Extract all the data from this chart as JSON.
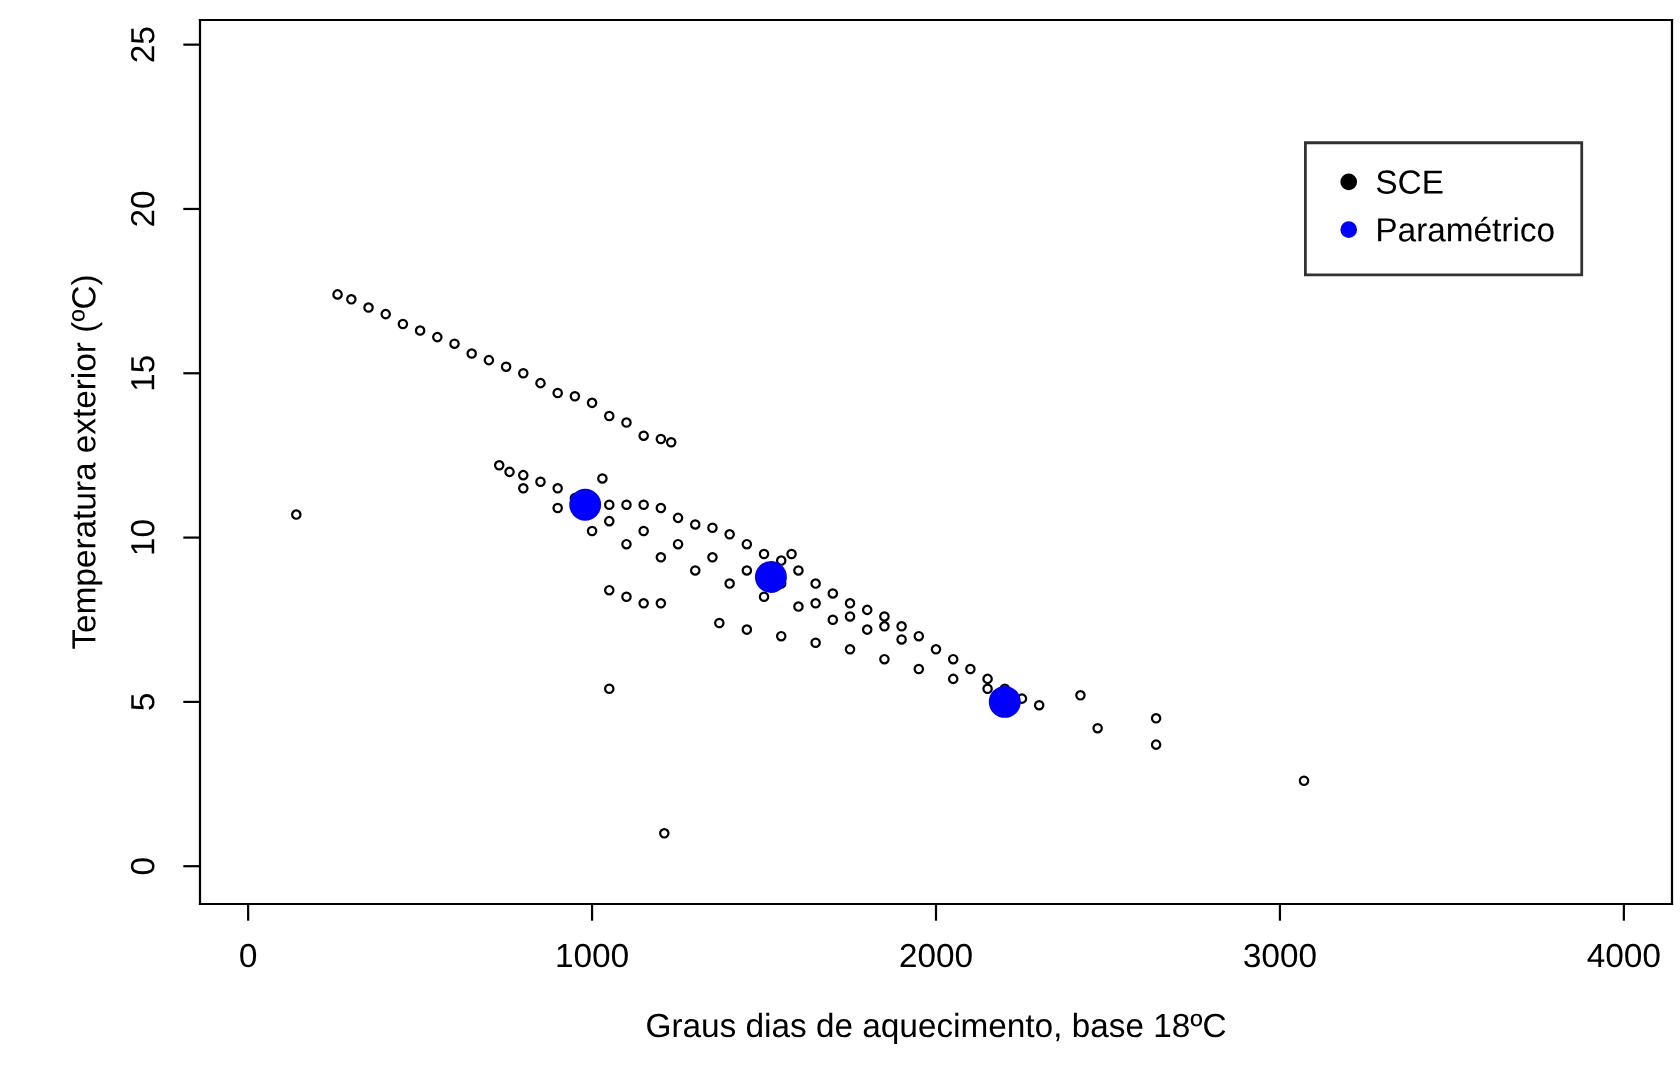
{
  "chart_data": {
    "type": "scatter",
    "xlabel": "Graus dias de aquecimento, base 18ºC",
    "ylabel": "Temperatura exterior (ºC)",
    "xlim": [
      -140,
      4140
    ],
    "ylim": [
      -1.15,
      25.75
    ],
    "xticks": [
      0,
      1000,
      2000,
      3000,
      4000
    ],
    "yticks": [
      0,
      5,
      10,
      15,
      20,
      25
    ],
    "grid": false,
    "legend": "top right",
    "marker": "circle",
    "series": [
      {
        "name": "SCE",
        "color": "#000000",
        "x": [
          260,
          300,
          350,
          400,
          450,
          500,
          550,
          600,
          650,
          700,
          750,
          800,
          850,
          900,
          950,
          1000,
          1050,
          1100,
          1150,
          1200,
          1230,
          730,
          760,
          800,
          850,
          900,
          950,
          1050,
          1100,
          1150,
          1200,
          1250,
          1300,
          1350,
          1400,
          1450,
          1500,
          1550,
          1600,
          1650,
          1700,
          1750,
          1800,
          1850,
          1900,
          1950,
          2000,
          2050,
          2100,
          2150,
          2200,
          2250,
          2300,
          800,
          900,
          1000,
          1100,
          1200,
          1300,
          1400,
          1500,
          1600,
          1700,
          1800,
          1900,
          1050,
          1150,
          1250,
          1350,
          1450,
          1550,
          1650,
          1750,
          1850,
          1050,
          1100,
          1150,
          1200,
          1370,
          1450,
          1550,
          1650,
          1750,
          1850,
          1950,
          2050,
          2150,
          140,
          1050,
          1210,
          1030,
          1580,
          2420,
          2470,
          2640,
          2640,
          3070
        ],
        "values": [
          17.4,
          17.25,
          17.0,
          16.8,
          16.5,
          16.3,
          16.1,
          15.9,
          15.6,
          15.4,
          15.2,
          15.0,
          14.7,
          14.4,
          14.3,
          14.1,
          13.7,
          13.5,
          13.1,
          13.0,
          12.9,
          12.2,
          12.0,
          11.9,
          11.7,
          11.5,
          11.2,
          11.0,
          11.0,
          11.0,
          10.9,
          10.6,
          10.4,
          10.3,
          10.1,
          9.8,
          9.5,
          9.3,
          9.0,
          8.6,
          8.3,
          8.0,
          7.8,
          7.6,
          7.3,
          7.0,
          6.6,
          6.3,
          6.0,
          5.7,
          5.4,
          5.1,
          4.9,
          11.5,
          10.9,
          10.2,
          9.8,
          9.4,
          9.0,
          8.6,
          8.2,
          7.9,
          7.5,
          7.2,
          6.9,
          10.5,
          10.2,
          9.8,
          9.4,
          9.0,
          8.6,
          8.0,
          7.6,
          7.3,
          8.4,
          8.2,
          8.0,
          8.0,
          7.4,
          7.2,
          7.0,
          6.8,
          6.6,
          6.3,
          6.0,
          5.7,
          5.4,
          10.7,
          5.4,
          1.0,
          11.8,
          9.5,
          5.2,
          4.2,
          4.5,
          3.7,
          2.6
        ]
      },
      {
        "name": "Paramétrico",
        "color": "#0000ff",
        "x": [
          980,
          1520,
          2200
        ],
        "values": [
          11.0,
          8.8,
          5.0
        ]
      }
    ]
  }
}
